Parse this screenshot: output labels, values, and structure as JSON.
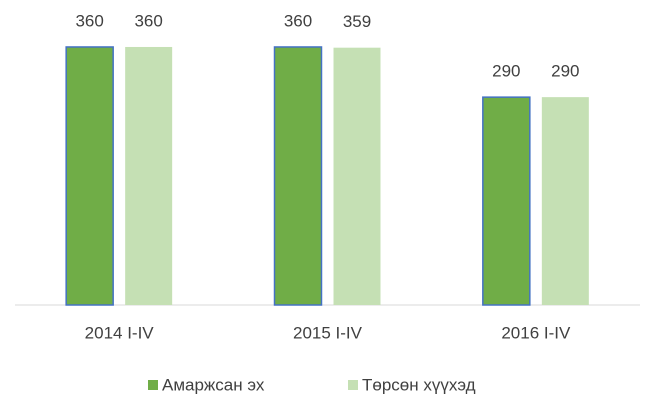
{
  "chart_data": {
    "type": "bar",
    "categories": [
      "2014 I-IV",
      "2015 I-IV",
      "2016 I-IV"
    ],
    "series": [
      {
        "name": "Амаржсан эх",
        "color": "#70ad47",
        "values": [
          360,
          360,
          290
        ]
      },
      {
        "name": "Төрсөн хүүхэд",
        "color": "#c5e0b4",
        "values": [
          360,
          359,
          290
        ]
      }
    ],
    "ylim": [
      0,
      400
    ],
    "legend": "bottom"
  }
}
